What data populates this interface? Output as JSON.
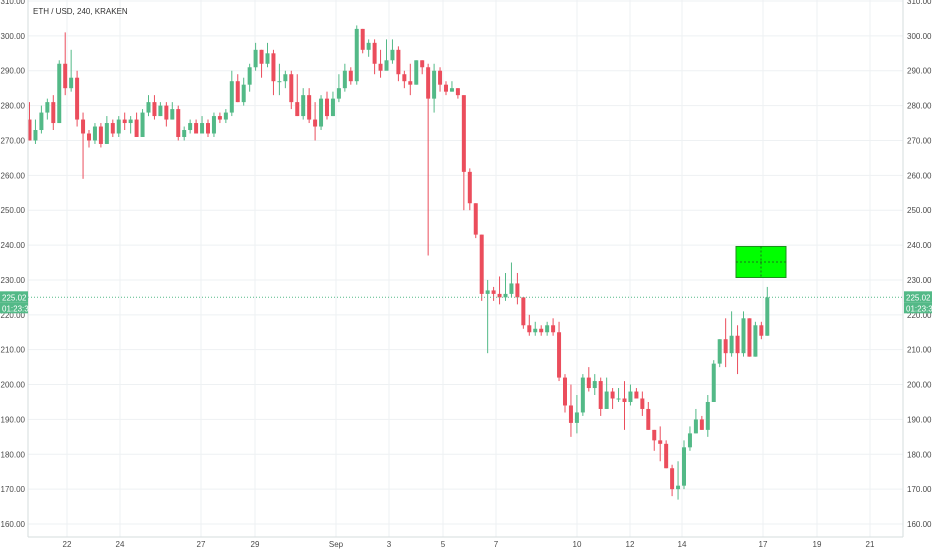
{
  "colors": {
    "up": "#53b987",
    "down": "#eb4d5c",
    "grid": "#eef1f3",
    "axis_text": "#4a4a4a",
    "price_line": "#53b987",
    "drawing_box": "#00ff00"
  },
  "chart_data": {
    "type": "candlestick",
    "title": "ETH / USD, 240, KRAKEN",
    "ylim": [
      158,
      310
    ],
    "y_ticks": [
      "160.00",
      "170.00",
      "180.00",
      "190.00",
      "200.00",
      "210.00",
      "220.00",
      "230.00",
      "240.00",
      "250.00",
      "260.00",
      "270.00",
      "280.00",
      "290.00",
      "300.00",
      "310.00"
    ],
    "x_ticks": [
      "22",
      "24",
      "27",
      "29",
      "Sep",
      "3",
      "5",
      "7",
      "10",
      "12",
      "14",
      "17",
      "19",
      "21"
    ],
    "last_price": "225.02",
    "countdown": "01:23:35",
    "candles": [
      [
        276,
        270,
        281,
        270
      ],
      [
        270,
        273,
        276,
        269
      ],
      [
        273,
        278,
        280,
        272
      ],
      [
        278,
        281,
        282,
        276
      ],
      [
        281,
        275,
        283,
        273
      ],
      [
        275,
        292,
        293,
        275
      ],
      [
        292,
        285,
        301,
        283
      ],
      [
        285,
        288,
        296,
        284
      ],
      [
        288,
        276,
        290,
        274
      ],
      [
        276,
        272,
        278,
        259
      ],
      [
        272,
        270,
        273,
        268
      ],
      [
        270,
        274,
        275,
        269
      ],
      [
        274,
        269,
        275,
        268
      ],
      [
        269,
        275,
        277,
        269
      ],
      [
        275,
        272,
        276,
        271
      ],
      [
        272,
        276,
        277,
        271
      ],
      [
        276,
        275,
        278,
        273
      ],
      [
        275,
        276,
        277,
        272
      ],
      [
        276,
        271,
        278,
        271
      ],
      [
        271,
        278,
        279,
        271
      ],
      [
        278,
        281,
        283,
        277
      ],
      [
        281,
        277,
        283,
        276
      ],
      [
        277,
        280,
        281,
        277
      ],
      [
        280,
        276,
        281,
        274
      ],
      [
        276,
        279,
        281,
        276
      ],
      [
        279,
        271,
        280,
        270
      ],
      [
        271,
        273,
        274,
        270
      ],
      [
        273,
        275,
        276,
        272
      ],
      [
        275,
        272,
        276,
        272
      ],
      [
        272,
        275,
        277,
        272
      ],
      [
        275,
        272,
        276,
        271
      ],
      [
        272,
        277,
        278,
        271
      ],
      [
        277,
        276,
        278,
        275
      ],
      [
        276,
        278,
        279,
        275
      ],
      [
        278,
        287,
        290,
        277
      ],
      [
        287,
        281,
        289,
        281
      ],
      [
        281,
        286,
        288,
        280
      ],
      [
        286,
        291,
        292,
        284
      ],
      [
        291,
        296,
        298,
        290
      ],
      [
        296,
        292,
        296,
        288
      ],
      [
        292,
        295,
        298,
        291
      ],
      [
        295,
        287,
        296,
        283
      ],
      [
        287,
        287,
        292,
        283
      ],
      [
        287,
        289,
        290,
        285
      ],
      [
        289,
        281,
        290,
        279
      ],
      [
        281,
        277,
        289,
        277
      ],
      [
        277,
        283,
        285,
        276
      ],
      [
        283,
        276,
        285,
        275
      ],
      [
        276,
        274,
        281,
        270
      ],
      [
        274,
        282,
        283,
        273
      ],
      [
        282,
        277,
        284,
        276
      ],
      [
        277,
        282,
        284,
        277
      ],
      [
        282,
        285,
        289,
        281
      ],
      [
        285,
        290,
        292,
        284
      ],
      [
        290,
        287,
        291,
        286
      ],
      [
        287,
        302,
        303,
        286
      ],
      [
        302,
        296,
        302,
        295
      ],
      [
        296,
        298,
        299,
        294
      ],
      [
        298,
        292,
        299,
        289
      ],
      [
        292,
        290,
        296,
        288
      ],
      [
        290,
        293,
        299,
        292
      ],
      [
        293,
        296,
        299,
        292
      ],
      [
        296,
        289,
        297,
        287
      ],
      [
        289,
        287,
        290,
        285
      ],
      [
        287,
        286,
        292,
        283
      ],
      [
        286,
        293,
        293,
        286
      ],
      [
        293,
        291,
        293,
        289
      ],
      [
        291,
        282,
        292,
        237
      ],
      [
        282,
        290,
        292,
        278
      ],
      [
        290,
        286,
        291,
        284
      ],
      [
        286,
        284,
        287,
        283
      ],
      [
        284,
        285,
        287,
        284
      ],
      [
        285,
        283,
        285,
        282
      ],
      [
        283,
        261,
        283,
        250
      ],
      [
        261,
        252,
        262,
        250
      ],
      [
        252,
        243,
        252,
        242
      ],
      [
        243,
        226,
        243,
        224
      ],
      [
        226,
        227,
        230,
        209
      ],
      [
        227,
        226,
        228,
        224
      ],
      [
        226,
        225,
        231,
        223
      ],
      [
        225,
        226,
        232,
        224
      ],
      [
        226,
        229,
        235,
        225
      ],
      [
        229,
        225,
        232,
        223
      ],
      [
        225,
        217,
        225,
        216
      ],
      [
        217,
        215,
        220,
        214
      ],
      [
        215,
        216,
        218,
        214
      ],
      [
        216,
        215,
        217,
        214
      ],
      [
        215,
        217,
        218,
        214
      ],
      [
        217,
        215,
        219,
        214
      ],
      [
        215,
        202,
        218,
        201
      ],
      [
        202,
        194,
        203,
        192
      ],
      [
        194,
        189,
        200,
        185
      ],
      [
        189,
        192,
        197,
        186
      ],
      [
        192,
        202,
        203,
        191
      ],
      [
        202,
        199,
        205,
        198
      ],
      [
        199,
        201,
        203,
        197
      ],
      [
        201,
        193,
        202,
        191
      ],
      [
        193,
        198,
        202,
        193
      ],
      [
        198,
        196,
        199,
        193
      ],
      [
        196,
        196,
        199,
        195
      ],
      [
        196,
        195,
        201,
        187
      ],
      [
        195,
        198,
        200,
        194
      ],
      [
        198,
        196,
        199,
        196
      ],
      [
        196,
        193,
        198,
        191
      ],
      [
        193,
        187,
        195,
        187
      ],
      [
        187,
        184,
        187,
        181
      ],
      [
        184,
        183,
        188,
        178
      ],
      [
        183,
        176,
        184,
        176
      ],
      [
        176,
        170,
        177,
        168
      ],
      [
        170,
        171,
        178,
        167
      ],
      [
        171,
        182,
        184,
        170
      ],
      [
        182,
        186,
        188,
        181
      ],
      [
        186,
        190,
        193,
        186
      ],
      [
        190,
        187,
        191,
        187
      ],
      [
        187,
        195,
        197,
        185
      ],
      [
        195,
        206,
        207,
        195
      ],
      [
        206,
        213,
        213,
        205
      ],
      [
        213,
        209,
        219,
        205
      ],
      [
        209,
        214,
        221,
        208
      ],
      [
        214,
        209,
        217,
        203
      ],
      [
        209,
        219,
        221,
        208
      ],
      [
        219,
        208,
        219,
        208
      ],
      [
        208,
        217,
        218,
        208
      ],
      [
        217,
        214,
        218,
        213
      ],
      [
        214,
        225,
        228,
        214
      ]
    ]
  }
}
